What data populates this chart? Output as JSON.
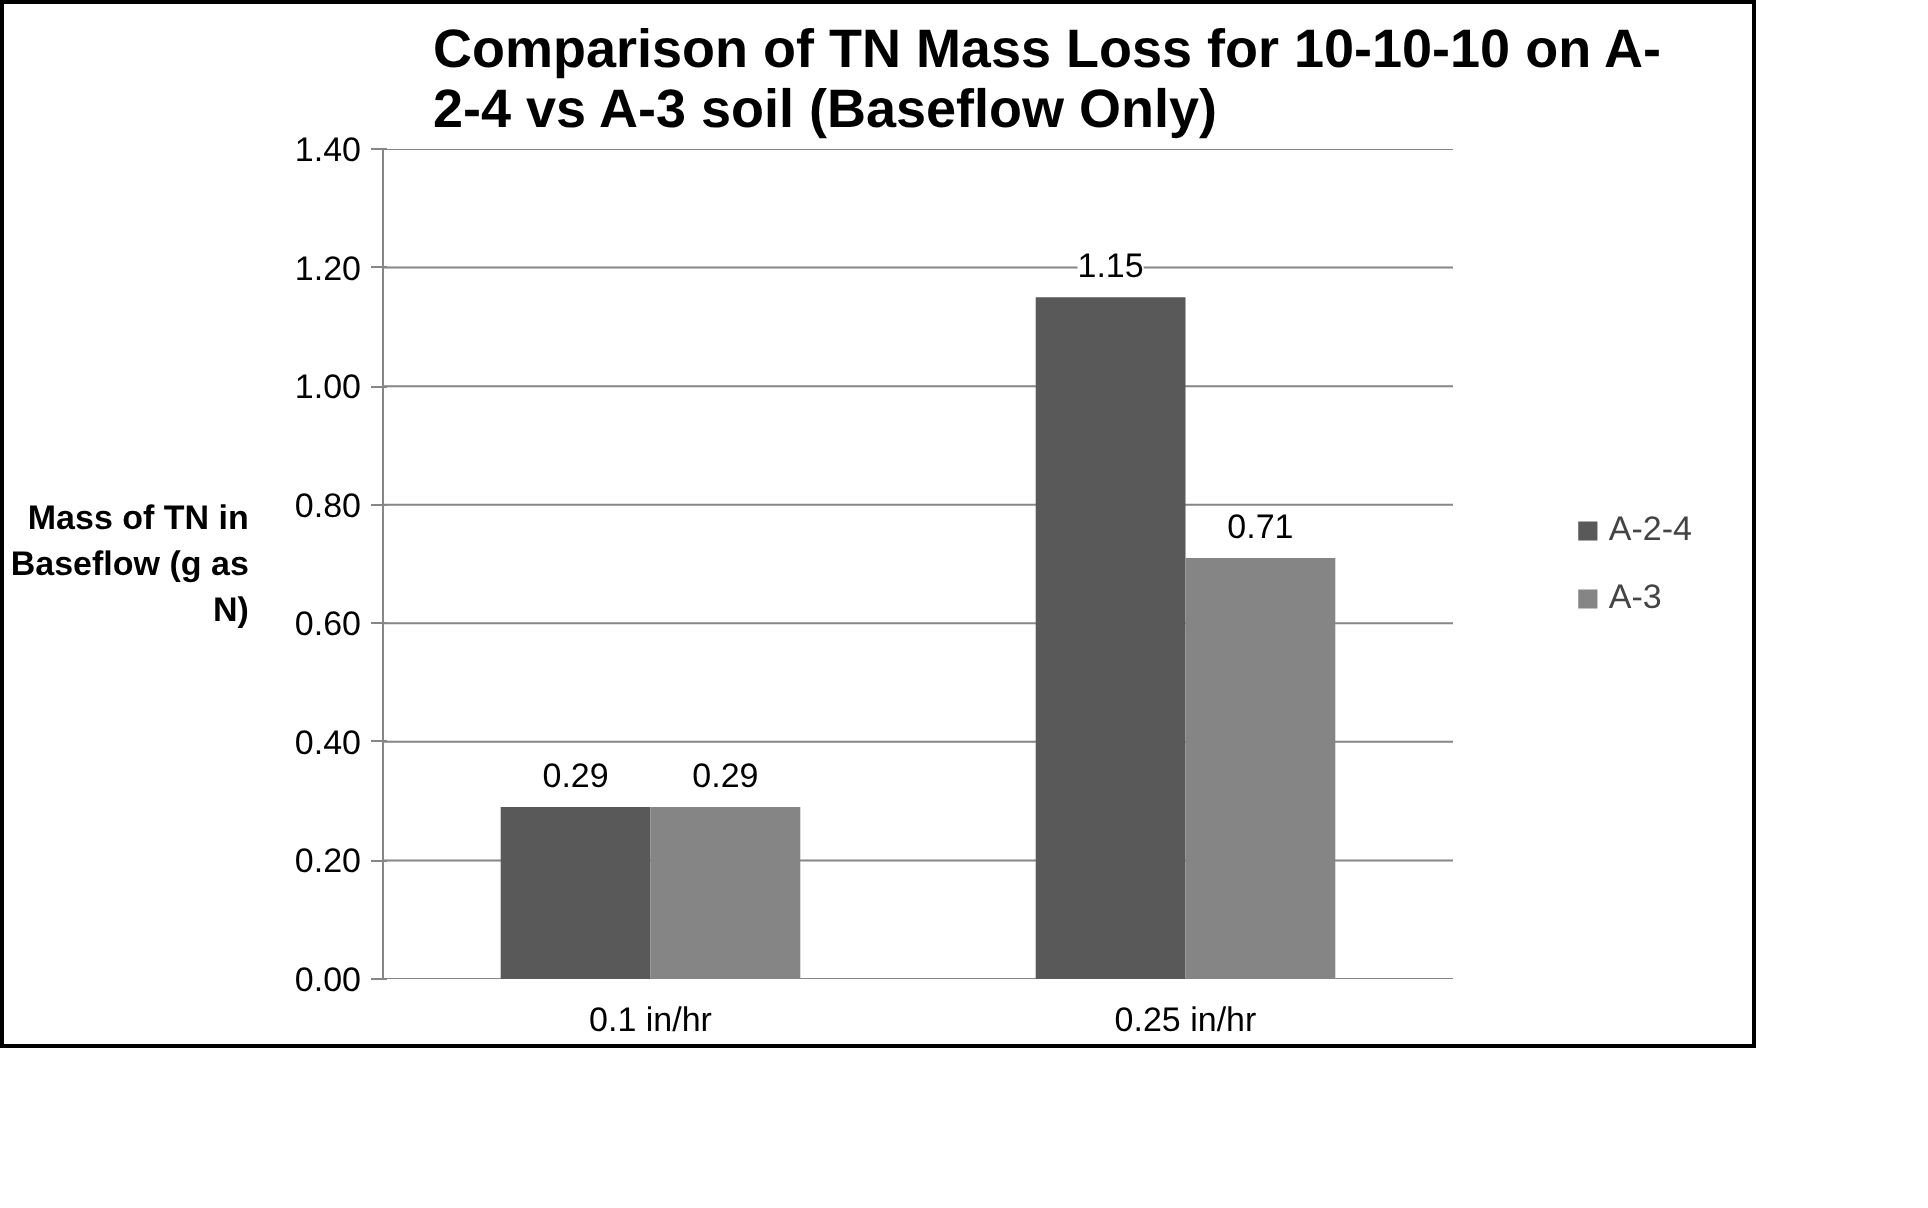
{
  "chart_data": {
    "type": "bar",
    "title": "Comparison of TN Mass Loss for 10-10-10 on A-2-4 vs A-3 soil (Baseflow Only)",
    "ylabel": "Mass of TN in Baseflow (g as N)",
    "categories": [
      "0.1 in/hr",
      "0.25 in/hr"
    ],
    "series": [
      {
        "name": "A-2-4",
        "color": "#595959",
        "values": [
          0.29,
          1.15
        ]
      },
      {
        "name": "A-3",
        "color": "#858585",
        "values": [
          0.29,
          0.71
        ]
      }
    ],
    "ylim": [
      0,
      1.4
    ],
    "yticks": [
      {
        "value": 0,
        "label": "0.00"
      },
      {
        "value": 0.2,
        "label": "0.20"
      },
      {
        "value": 0.4,
        "label": "0.40"
      },
      {
        "value": 0.6,
        "label": "0.60"
      },
      {
        "value": 0.8,
        "label": "0.80"
      },
      {
        "value": 1.0,
        "label": "1.00"
      },
      {
        "value": 1.2,
        "label": "1.20"
      },
      {
        "value": 1.4,
        "label": "1.40"
      }
    ],
    "grid": "y",
    "legend": "right",
    "data_labels": true
  }
}
